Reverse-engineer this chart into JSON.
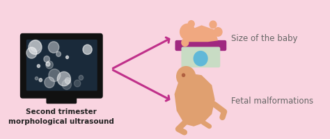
{
  "background_color": "#f9d4e0",
  "arrow_color": "#c0308a",
  "text_color_dark": "#222222",
  "text_color_gray": "#666666",
  "label1": "Size of the baby",
  "label2": "Fetal malformations",
  "main_label_line1": "Second trimester",
  "main_label_line2": "morphological ultrasound",
  "figsize": [
    4.74,
    2.01
  ],
  "dpi": 100
}
